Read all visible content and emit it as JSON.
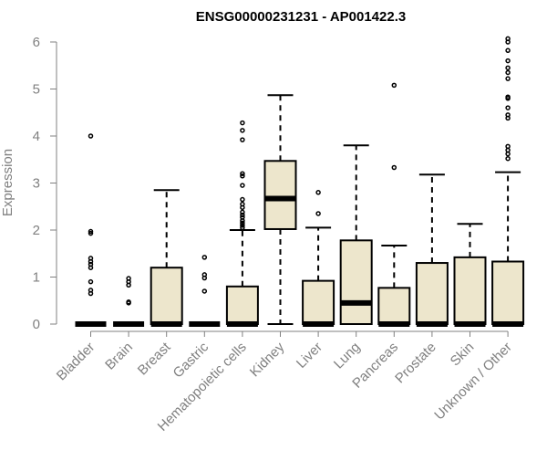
{
  "chart_data": {
    "type": "box",
    "title": "ENSG00000231231 - AP001422.3",
    "xlabel": "",
    "ylabel": "Expression",
    "ylim": [
      0,
      6
    ],
    "yticks": [
      0,
      1,
      2,
      3,
      4,
      5,
      6
    ],
    "colors": {
      "box_fill": "#ede6cc",
      "axis": "#808080"
    },
    "boxes": [
      {
        "category": "Bladder",
        "q1": 0,
        "median": 0,
        "q3": 0,
        "whisker_low": 0,
        "whisker_high": 0,
        "outliers": [
          4.0,
          1.97,
          1.93,
          1.4,
          1.33,
          1.27,
          1.2,
          0.9,
          0.72,
          0.65
        ]
      },
      {
        "category": "Brain",
        "q1": 0,
        "median": 0,
        "q3": 0,
        "whisker_low": 0,
        "whisker_high": 0,
        "outliers": [
          0.97,
          0.9,
          0.83,
          0.47,
          0.45
        ]
      },
      {
        "category": "Breast",
        "q1": 0,
        "median": 0,
        "q3": 1.2,
        "whisker_low": 0,
        "whisker_high": 2.85,
        "outliers": []
      },
      {
        "category": "Gastric",
        "q1": 0,
        "median": 0,
        "q3": 0,
        "whisker_low": 0,
        "whisker_high": 0,
        "outliers": [
          1.42,
          1.05,
          0.98,
          0.7
        ]
      },
      {
        "category": "Hematopoietic cells",
        "q1": 0,
        "median": 0,
        "q3": 0.8,
        "whisker_low": 0,
        "whisker_high": 2.0,
        "outliers": [
          4.28,
          4.12,
          3.92,
          3.2,
          3.15,
          2.95,
          2.65,
          2.55,
          2.48,
          2.38,
          2.32,
          2.27,
          2.2,
          2.15,
          2.1,
          2.05
        ]
      },
      {
        "category": "Kidney",
        "q1": 2.02,
        "median": 2.67,
        "q3": 3.47,
        "whisker_low": 0,
        "whisker_high": 4.87,
        "outliers": []
      },
      {
        "category": "Liver",
        "q1": 0,
        "median": 0,
        "q3": 0.92,
        "whisker_low": 0,
        "whisker_high": 2.05,
        "outliers": [
          2.8,
          2.35
        ]
      },
      {
        "category": "Lung",
        "q1": 0,
        "median": 0.45,
        "q3": 1.78,
        "whisker_low": 0,
        "whisker_high": 3.8,
        "outliers": []
      },
      {
        "category": "Pancreas",
        "q1": 0,
        "median": 0,
        "q3": 0.77,
        "whisker_low": 0,
        "whisker_high": 1.67,
        "outliers": [
          5.08,
          3.33
        ]
      },
      {
        "category": "Prostate",
        "q1": 0,
        "median": 0,
        "q3": 1.3,
        "whisker_low": 0,
        "whisker_high": 3.18,
        "outliers": []
      },
      {
        "category": "Skin",
        "q1": 0,
        "median": 0,
        "q3": 1.42,
        "whisker_low": 0,
        "whisker_high": 2.13,
        "outliers": []
      },
      {
        "category": "Unknown / Other",
        "q1": 0,
        "median": 0,
        "q3": 1.33,
        "whisker_low": 0,
        "whisker_high": 3.23,
        "outliers": [
          6.07,
          6.0,
          5.82,
          5.6,
          5.45,
          5.35,
          5.22,
          4.83,
          4.8,
          4.6,
          4.45,
          4.38,
          3.78,
          3.7,
          3.62,
          3.52
        ]
      }
    ]
  }
}
